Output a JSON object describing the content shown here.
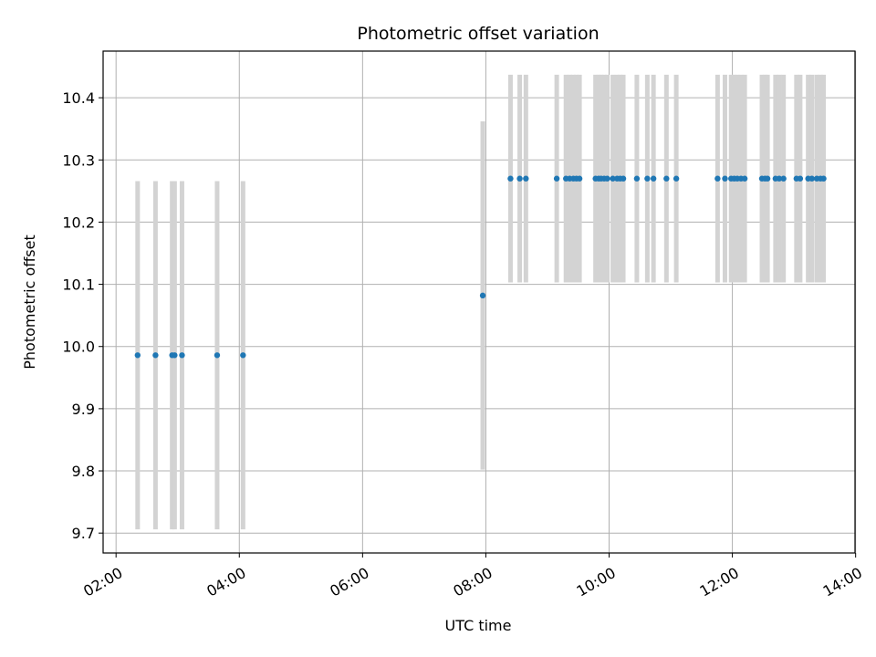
{
  "chart_data": {
    "type": "scatter",
    "title": "Photometric offset variation",
    "xlabel": "UTC time",
    "ylabel": "Photometric offset",
    "x_axis_kind": "time",
    "x_units": "hours UTC",
    "xlim": [
      1.79,
      13.99
    ],
    "ylim": [
      9.668,
      10.475
    ],
    "xticks": [
      2,
      4,
      6,
      8,
      10,
      12,
      14
    ],
    "xtick_labels": [
      "02:00",
      "04:00",
      "06:00",
      "08:00",
      "10:00",
      "12:00",
      "14:00"
    ],
    "yticks": [
      9.7,
      9.8,
      9.9,
      10.0,
      10.1,
      10.2,
      10.3,
      10.4
    ],
    "ytick_labels": [
      "9.7",
      "9.8",
      "9.9",
      "10.0",
      "10.1",
      "10.2",
      "10.3",
      "10.4"
    ],
    "grid": true,
    "legend": "none",
    "colors": {
      "marker": "#1f77b4",
      "errorbar": "#d3d3d3",
      "grid": "#b0b0b0"
    },
    "series": [
      {
        "x": [
          2.35,
          2.64,
          2.91,
          2.95,
          3.07,
          3.64,
          4.06
        ],
        "y": [
          9.986,
          9.986,
          9.986,
          9.986,
          9.986,
          9.986,
          9.986
        ],
        "err": [
          0.28,
          0.28,
          0.28,
          0.28,
          0.28,
          0.28,
          0.28
        ]
      },
      {
        "x": [
          7.95
        ],
        "y": [
          10.082
        ],
        "err": [
          0.28
        ]
      },
      {
        "x": [
          8.4,
          8.55,
          8.65,
          9.15,
          9.3,
          9.36,
          9.42,
          9.47,
          9.52,
          9.78,
          9.83,
          9.87,
          9.92,
          9.97,
          10.06,
          10.13,
          10.18,
          10.23,
          10.45,
          10.62,
          10.72,
          10.93,
          11.09,
          11.76,
          11.88,
          11.98,
          12.03,
          12.08,
          12.14,
          12.2,
          12.48,
          12.53,
          12.57,
          12.7,
          12.76,
          12.83,
          13.04,
          13.1,
          13.23,
          13.29,
          13.37,
          13.43,
          13.48
        ],
        "y": [
          10.27,
          10.27,
          10.27,
          10.27,
          10.27,
          10.27,
          10.27,
          10.27,
          10.27,
          10.27,
          10.27,
          10.27,
          10.27,
          10.27,
          10.27,
          10.27,
          10.27,
          10.27,
          10.27,
          10.27,
          10.27,
          10.27,
          10.27,
          10.27,
          10.27,
          10.27,
          10.27,
          10.27,
          10.27,
          10.27,
          10.27,
          10.27,
          10.27,
          10.27,
          10.27,
          10.27,
          10.27,
          10.27,
          10.27,
          10.27,
          10.27,
          10.27,
          10.27
        ],
        "err": [
          0.167,
          0.167,
          0.167,
          0.167,
          0.167,
          0.167,
          0.167,
          0.167,
          0.167,
          0.167,
          0.167,
          0.167,
          0.167,
          0.167,
          0.167,
          0.167,
          0.167,
          0.167,
          0.167,
          0.167,
          0.167,
          0.167,
          0.167,
          0.167,
          0.167,
          0.167,
          0.167,
          0.167,
          0.167,
          0.167,
          0.167,
          0.167,
          0.167,
          0.167,
          0.167,
          0.167,
          0.167,
          0.167,
          0.167,
          0.167,
          0.167,
          0.167,
          0.167
        ]
      }
    ]
  }
}
